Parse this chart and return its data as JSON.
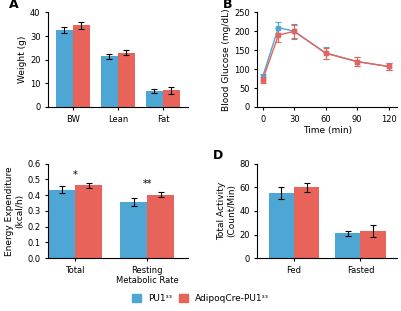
{
  "blue_color": "#4DA6D4",
  "red_color": "#E8635A",
  "background": "#FFFFFF",
  "A_categories": [
    "BW",
    "Lean",
    "Fat"
  ],
  "A_blue_vals": [
    32.5,
    21.5,
    6.8
  ],
  "A_red_vals": [
    34.5,
    23.0,
    7.0
  ],
  "A_blue_err": [
    1.2,
    1.0,
    0.8
  ],
  "A_red_err": [
    1.5,
    1.0,
    1.5
  ],
  "A_ylabel": "Weight (g)",
  "A_ylim": [
    0,
    40
  ],
  "A_yticks": [
    0,
    10,
    20,
    30,
    40
  ],
  "B_x": [
    0,
    15,
    30,
    60,
    90,
    120
  ],
  "B_blue_vals": [
    80,
    210,
    200,
    143,
    120,
    107
  ],
  "B_red_vals": [
    72,
    190,
    200,
    142,
    120,
    107
  ],
  "B_blue_err": [
    8,
    15,
    18,
    15,
    12,
    8
  ],
  "B_red_err": [
    8,
    18,
    20,
    15,
    12,
    10
  ],
  "B_ylabel": "Blood Glucose (mg/dL)",
  "B_xlabel": "Time (min)",
  "B_ylim": [
    0,
    250
  ],
  "B_yticks": [
    0,
    50,
    100,
    150,
    200,
    250
  ],
  "B_xticks": [
    0,
    30,
    60,
    90,
    120
  ],
  "C_categories": [
    "Total",
    "Resting\nMetabolic Rate"
  ],
  "C_blue_vals": [
    0.435,
    0.355
  ],
  "C_red_vals": [
    0.463,
    0.403
  ],
  "C_blue_err": [
    0.022,
    0.025
  ],
  "C_red_err": [
    0.015,
    0.018
  ],
  "C_ylabel": "Energy Expenditure\n(kcal/h)",
  "C_ylim": [
    0.0,
    0.6
  ],
  "C_yticks": [
    0.0,
    0.1,
    0.2,
    0.3,
    0.4,
    0.5,
    0.6
  ],
  "C_sig": [
    "*",
    "**"
  ],
  "D_categories": [
    "Fed",
    "Fasted"
  ],
  "D_blue_vals": [
    55,
    21
  ],
  "D_red_vals": [
    60,
    23
  ],
  "D_blue_err": [
    5,
    2
  ],
  "D_red_err": [
    4,
    5
  ],
  "D_ylabel": "Total Activity\n(Count/Min)",
  "D_ylim": [
    0,
    80
  ],
  "D_yticks": [
    0,
    20,
    40,
    60,
    80
  ],
  "legend_blue_label": "PU1ᶟᶟ",
  "legend_red_label": "AdipoqCre-PU1ᶟᶟ"
}
